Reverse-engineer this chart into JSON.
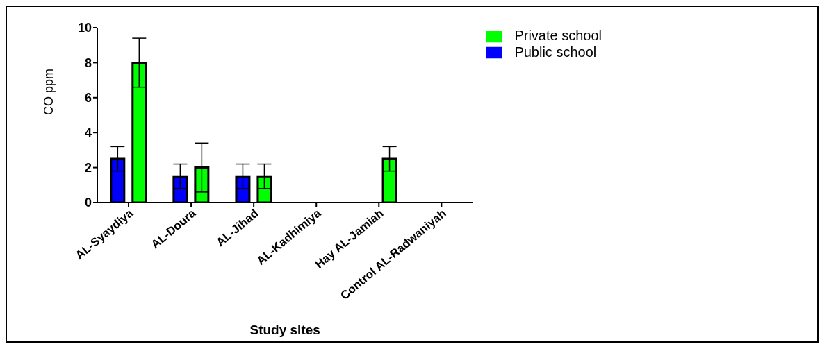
{
  "chart_data": {
    "type": "bar",
    "xlabel": "Study sites",
    "ylabel": "CO ppm",
    "categories": [
      "AL-Syaydiya",
      "AL-Doura",
      "AL-Jihad",
      "AL-Kadhimiya",
      "Hay AL-Jamiah",
      "Control AL-Radwaniyah"
    ],
    "series": [
      {
        "name": "Public school",
        "color": "#0000ff",
        "values": [
          2.5,
          1.5,
          1.5,
          0,
          0,
          0
        ],
        "errors": [
          0.7,
          0.7,
          0.7,
          null,
          null,
          null
        ]
      },
      {
        "name": "Private school",
        "color": "#00ff00",
        "values": [
          8,
          2,
          1.5,
          0,
          2.5,
          0
        ],
        "errors": [
          1.4,
          1.4,
          0.7,
          null,
          0.7,
          null
        ]
      }
    ],
    "ylim": [
      0,
      10
    ],
    "yticks": [
      0,
      2,
      4,
      6,
      8,
      10
    ],
    "grid": false,
    "legend": "top right"
  }
}
